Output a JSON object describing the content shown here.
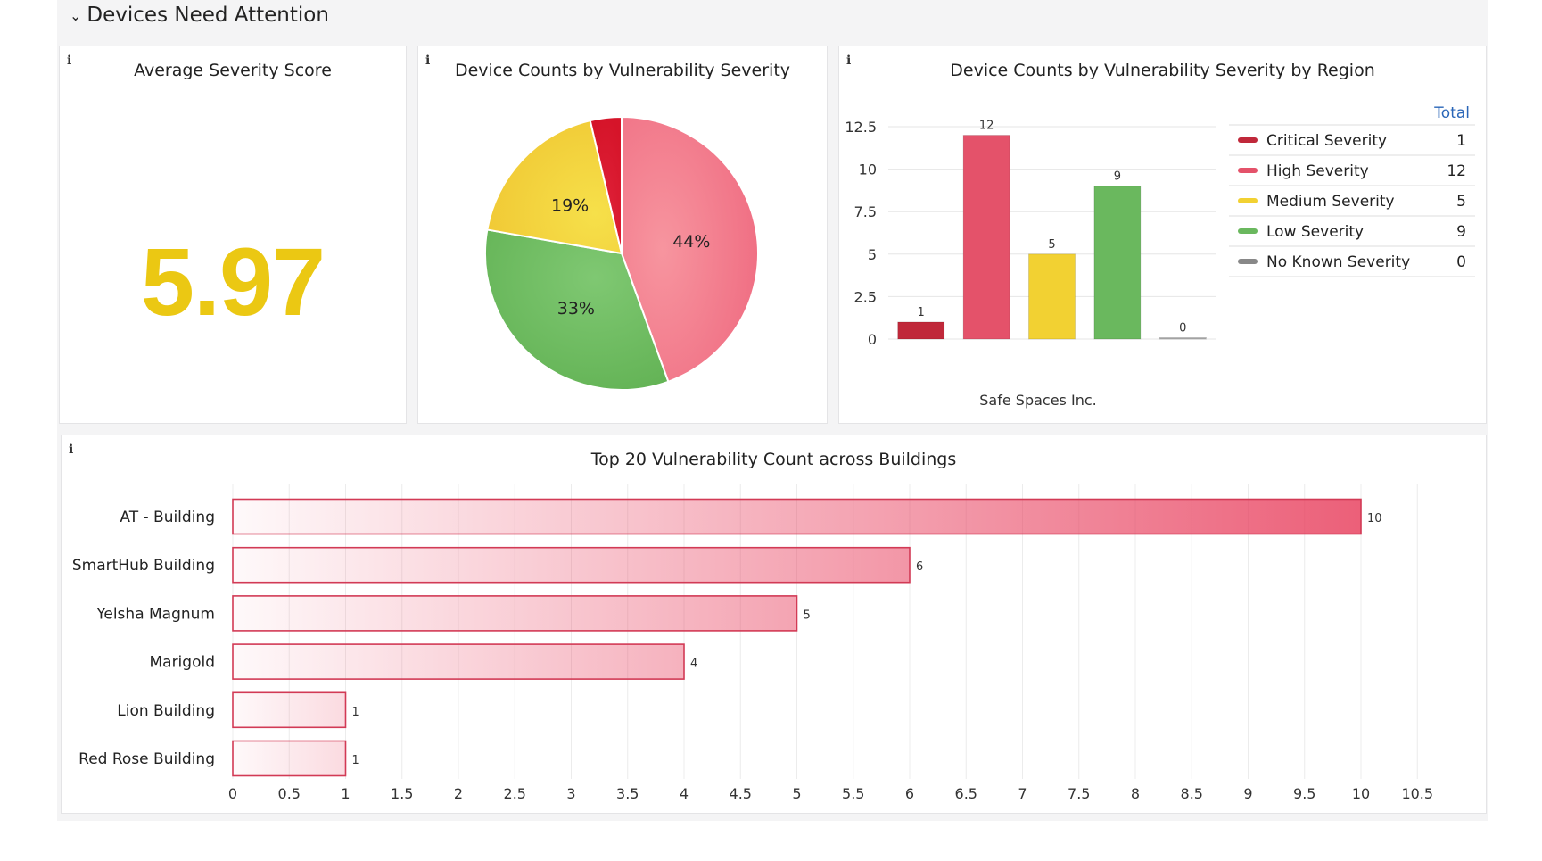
{
  "section": {
    "title": "Devices Need Attention",
    "collapse_icon": "chevron-down-icon"
  },
  "colors": {
    "critical": "#c0283a",
    "high": "#e4526a",
    "medium": "#f2d132",
    "low": "#6ab85e",
    "none": "#888888",
    "kpi": "#ebc813",
    "legend_header": "#2a66b8"
  },
  "kpi_panel": {
    "title": "Average Severity Score",
    "value": "5.97"
  },
  "pie_panel": {
    "title": "Device Counts by Vulnerability Severity"
  },
  "region_panel": {
    "title": "Device Counts by Vulnerability Severity by Region",
    "legend_header": "Total",
    "legend": [
      {
        "label": "Critical Severity",
        "value": "1"
      },
      {
        "label": "High Severity",
        "value": "12"
      },
      {
        "label": "Medium Severity",
        "value": "5"
      },
      {
        "label": "Low Severity",
        "value": "9"
      },
      {
        "label": "No Known Severity",
        "value": "0"
      }
    ]
  },
  "buildings_panel": {
    "title": "Top 20 Vulnerability Count across Buildings"
  },
  "chart_data": [
    {
      "type": "pie",
      "title": "Device Counts by Vulnerability Severity",
      "slices": [
        {
          "name": "High Severity",
          "value": 12,
          "label": "44%",
          "color": "#ef6a80"
        },
        {
          "name": "Low Severity",
          "value": 9,
          "label": "33%",
          "color": "#6ab85e"
        },
        {
          "name": "Medium Severity",
          "value": 5,
          "label": "19%",
          "color": "#f2d132"
        },
        {
          "name": "Critical Severity",
          "value": 1,
          "label": "",
          "color": "#dc1730"
        }
      ]
    },
    {
      "type": "bar",
      "title": "Device Counts by Vulnerability Severity by Region",
      "categories": [
        "Safe Spaces Inc."
      ],
      "series": [
        {
          "name": "Critical Severity",
          "values": [
            1
          ],
          "label": "1",
          "color": "#c0283a"
        },
        {
          "name": "High Severity",
          "values": [
            12
          ],
          "label": "12",
          "color": "#e4526a"
        },
        {
          "name": "Medium Severity",
          "values": [
            5
          ],
          "label": "5",
          "color": "#f2d132"
        },
        {
          "name": "Low Severity",
          "values": [
            9
          ],
          "label": "9",
          "color": "#6ab85e"
        },
        {
          "name": "No Known Severity",
          "values": [
            0
          ],
          "label": "0",
          "color": "#888888"
        }
      ],
      "yticks": [
        "0",
        "2.5",
        "5",
        "7.5",
        "10",
        "12.5"
      ],
      "ylim": [
        0,
        12.5
      ],
      "xlabel": "",
      "ylabel": ""
    },
    {
      "type": "bar",
      "orientation": "horizontal",
      "title": "Top 20 Vulnerability Count across Buildings",
      "categories": [
        "AT - Building",
        "SmartHub Building",
        "Yelsha Magnum",
        "Marigold",
        "Lion Building",
        "Red Rose Building"
      ],
      "values": [
        10,
        6,
        5,
        4,
        1,
        1
      ],
      "value_labels": [
        "10",
        "6",
        "5",
        "4",
        "1",
        "1"
      ],
      "xticks": [
        "0",
        "0.5",
        "1",
        "1.5",
        "2",
        "2.5",
        "3",
        "3.5",
        "4",
        "4.5",
        "5",
        "5.5",
        "6",
        "6.5",
        "7",
        "7.5",
        "8",
        "8.5",
        "9",
        "9.5",
        "10",
        "10.5"
      ],
      "xlim": [
        0,
        10.5
      ]
    }
  ]
}
